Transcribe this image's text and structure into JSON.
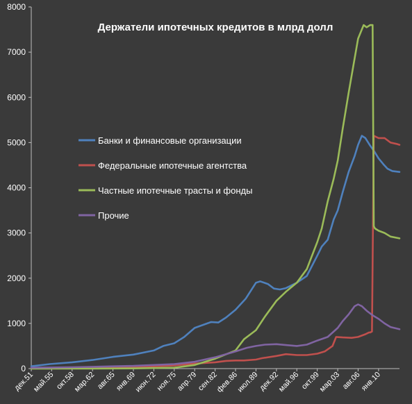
{
  "chart_data": {
    "type": "line",
    "title": "Держатели ипотечных кредитов в млрд долл",
    "xlabel": "",
    "ylabel": "",
    "ylim": [
      0,
      8000
    ],
    "yticks": [
      0,
      1000,
      2000,
      3000,
      4000,
      5000,
      6000,
      7000,
      8000
    ],
    "ytick_labels": [
      "0",
      "1000",
      "2000",
      "3000",
      "4000",
      "5000",
      "6000",
      "7000",
      "8000"
    ],
    "xlim": [
      1951.92,
      2013.5
    ],
    "xtick_labels": [
      "дек.51",
      "май.55",
      "окт.58",
      "мар.62",
      "авг.65",
      "янв.69",
      "июн.72",
      "ноя.75",
      "апр.79",
      "сен.82",
      "фев.86",
      "июл.89",
      "дек.92",
      "май.96",
      "окт.99",
      "мар.03",
      "авг.06",
      "янв.10"
    ],
    "xtick_values": [
      1951.92,
      1955.33,
      1958.75,
      1962.17,
      1965.58,
      1969.0,
      1972.42,
      1975.83,
      1979.25,
      1982.67,
      1986.08,
      1989.5,
      1992.92,
      1996.33,
      1999.75,
      2003.17,
      2006.58,
      2010.0
    ],
    "grid": false,
    "legend_placement": "center-left",
    "series": [
      {
        "name": "Банки и финансовые организации",
        "color": "#4f81bd",
        "x": [
          1951.92,
          1955,
          1958.75,
          1962.17,
          1965.58,
          1969,
          1972.42,
          1974,
          1975.83,
          1977.5,
          1979.25,
          1980.5,
          1982,
          1983.2,
          1984.5,
          1986.08,
          1987.8,
          1989.5,
          1990.2,
          1991.5,
          1992.5,
          1993.5,
          1994.5,
          1996.33,
          1998,
          1999.75,
          2000.5,
          2001.5,
          2002.5,
          2003.17,
          2004,
          2005,
          2006,
          2006.58,
          2007.2,
          2007.8,
          2008.5,
          2009.3,
          2010,
          2010.8,
          2011.5,
          2012.3,
          2013.5
        ],
        "y": [
          50,
          100,
          140,
          190,
          260,
          310,
          400,
          500,
          560,
          700,
          900,
          960,
          1030,
          1020,
          1130,
          1300,
          1550,
          1900,
          1930,
          1870,
          1770,
          1750,
          1780,
          1900,
          2050,
          2500,
          2700,
          2850,
          3300,
          3500,
          3900,
          4350,
          4700,
          4950,
          5150,
          5100,
          4950,
          4800,
          4650,
          4520,
          4420,
          4370,
          4350
        ]
      },
      {
        "name": "Федеральные ипотечные агентства",
        "color": "#c0504d",
        "x": [
          1951.92,
          1955,
          1958.75,
          1962.17,
          1965.58,
          1969,
          1972.42,
          1975.83,
          1979.25,
          1982.67,
          1984.5,
          1986.08,
          1987.5,
          1989.5,
          1990.5,
          1992.92,
          1994.5,
          1996.33,
          1998,
          1999.75,
          2001,
          2002.3,
          2002.9,
          2004,
          2005.5,
          2006.58,
          2007.8,
          2008.4,
          2008.6,
          2008.9,
          2009.2,
          2010,
          2011,
          2012,
          2013,
          2013.5
        ],
        "y": [
          5,
          10,
          15,
          20,
          25,
          35,
          50,
          70,
          110,
          140,
          170,
          180,
          180,
          200,
          230,
          280,
          320,
          300,
          300,
          330,
          380,
          500,
          700,
          690,
          680,
          700,
          760,
          800,
          800,
          820,
          5150,
          5100,
          5100,
          5000,
          4970,
          4950
        ]
      },
      {
        "name": "Частные ипотечные трасты и фонды",
        "color": "#9bbb59",
        "x": [
          1951.92,
          1962.17,
          1969,
          1975.83,
          1979.25,
          1982.67,
          1986.08,
          1987.5,
          1989.5,
          1991,
          1992.92,
          1994.5,
          1996.33,
          1998,
          1999.75,
          2000.5,
          2001.5,
          2002.5,
          2003.17,
          2004,
          2005,
          2006.58,
          2007.5,
          2008,
          2008.6,
          2009,
          2009.2,
          2009.4,
          2010,
          2011,
          2012,
          2013.5
        ],
        "y": [
          0,
          0,
          5,
          20,
          80,
          220,
          400,
          650,
          850,
          1150,
          1500,
          1700,
          1900,
          2200,
          2800,
          3100,
          3700,
          4200,
          4600,
          5300,
          6100,
          7300,
          7600,
          7550,
          7600,
          7600,
          3150,
          3100,
          3050,
          3000,
          2920,
          2880
        ]
      },
      {
        "name": "Прочие",
        "color": "#8064a2",
        "x": [
          1951.92,
          1955.33,
          1958.75,
          1962.17,
          1965.58,
          1969,
          1972.42,
          1975.83,
          1979.25,
          1982.67,
          1986.08,
          1988,
          1989.5,
          1991,
          1992.92,
          1994.5,
          1996.33,
          1998,
          1999.75,
          2001.5,
          2003.17,
          2004,
          2005,
          2006,
          2006.58,
          2007.2,
          2008,
          2009,
          2010,
          2011,
          2012,
          2013.5
        ],
        "y": [
          20,
          25,
          30,
          40,
          50,
          60,
          80,
          100,
          150,
          250,
          380,
          460,
          500,
          530,
          540,
          520,
          500,
          530,
          620,
          700,
          900,
          1050,
          1200,
          1380,
          1420,
          1380,
          1280,
          1180,
          1100,
          1000,
          920,
          870
        ]
      }
    ]
  }
}
